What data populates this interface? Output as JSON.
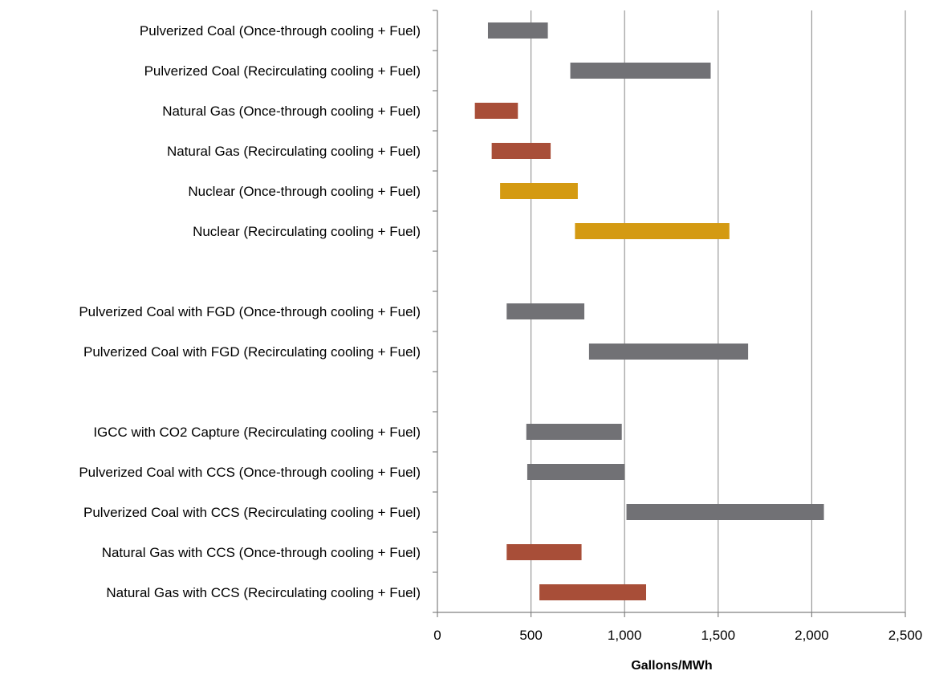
{
  "chart_data": {
    "type": "bar",
    "orientation": "horizontal",
    "subtype": "floating-range",
    "title": "",
    "xlabel": "Gallons/MWh",
    "ylabel": "",
    "xlim": [
      0,
      2500
    ],
    "xticks": [
      0,
      500,
      1000,
      1500,
      2000,
      2500
    ],
    "xtick_labels": [
      "0",
      "500",
      "1,000",
      "1,500",
      "2,000",
      "2,500"
    ],
    "grid": "vertical",
    "legend": "none",
    "colors": {
      "coal": "#717175",
      "gas": "#a84e38",
      "nuclear": "#d49a12",
      "grid": "#999999",
      "axis": "#808080"
    },
    "rows": [
      {
        "label": "Pulverized Coal (Once-through cooling + Fuel)",
        "min": 270,
        "max": 590,
        "group": "coal"
      },
      {
        "label": "Pulverized Coal (Recirculating cooling + Fuel)",
        "min": 710,
        "max": 1460,
        "group": "coal"
      },
      {
        "label": "Natural Gas (Once-through cooling + Fuel)",
        "min": 200,
        "max": 430,
        "group": "gas"
      },
      {
        "label": "Natural Gas (Recirculating cooling + Fuel)",
        "min": 290,
        "max": 605,
        "group": "gas"
      },
      {
        "label": "Nuclear (Once-through cooling + Fuel)",
        "min": 335,
        "max": 750,
        "group": "nuclear"
      },
      {
        "label": "Nuclear (Recirculating cooling + Fuel)",
        "min": 735,
        "max": 1560,
        "group": "nuclear"
      },
      {
        "label": "",
        "min": null,
        "max": null,
        "group": ""
      },
      {
        "label": "Pulverized Coal with FGD (Once-through cooling + Fuel)",
        "min": 370,
        "max": 785,
        "group": "coal"
      },
      {
        "label": "Pulverized Coal with FGD (Recirculating cooling + Fuel)",
        "min": 810,
        "max": 1660,
        "group": "coal"
      },
      {
        "label": "",
        "min": null,
        "max": null,
        "group": ""
      },
      {
        "label": "IGCC with CO2 Capture (Recirculating cooling + Fuel)",
        "min": 475,
        "max": 985,
        "group": "coal"
      },
      {
        "label": "Pulverized Coal with CCS (Once-through cooling + Fuel)",
        "min": 480,
        "max": 1000,
        "group": "coal"
      },
      {
        "label": "Pulverized Coal with CCS (Recirculating cooling + Fuel)",
        "min": 1010,
        "max": 2065,
        "group": "coal"
      },
      {
        "label": "Natural Gas with CCS (Once-through cooling + Fuel)",
        "min": 370,
        "max": 770,
        "group": "gas"
      },
      {
        "label": "Natural Gas with CCS (Recirculating cooling + Fuel)",
        "min": 545,
        "max": 1115,
        "group": "gas"
      }
    ]
  }
}
